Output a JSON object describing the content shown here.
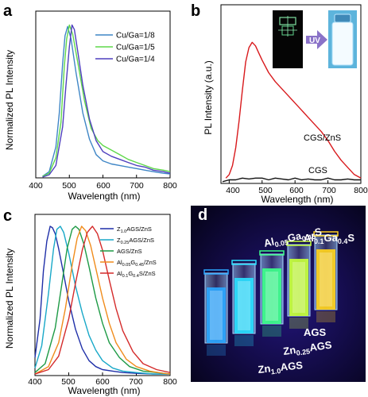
{
  "panels": {
    "a": {
      "letter": "a",
      "chart_data": {
        "type": "line",
        "xlabel": "Wavelength (nm)",
        "ylabel": "Normalized PL Intensity",
        "xlim": [
          400,
          800
        ],
        "ylim": [
          0,
          1.08
        ],
        "xticks": [
          "400",
          "500",
          "600",
          "700",
          "800"
        ],
        "legend": "top-right",
        "series": [
          {
            "name": "Cu/Ga=1/8",
            "color": "#3f86c6",
            "x": [
              420,
              440,
              460,
              470,
              480,
              487,
              495,
              505,
              520,
              540,
              560,
              580,
              600,
              625,
              650,
              675,
              700,
              725,
              750,
              780,
              800
            ],
            "y": [
              0.01,
              0.04,
              0.2,
              0.42,
              0.74,
              0.92,
              0.98,
              0.9,
              0.68,
              0.42,
              0.25,
              0.15,
              0.11,
              0.09,
              0.08,
              0.07,
              0.06,
              0.05,
              0.04,
              0.03,
              0.025
            ]
          },
          {
            "name": "Cu/Ga=1/5",
            "color": "#5fd84a",
            "x": [
              420,
              440,
              460,
              475,
              485,
              492,
              500,
              510,
              525,
              545,
              565,
              585,
              600,
              625,
              650,
              675,
              700,
              725,
              750,
              780,
              800
            ],
            "y": [
              0.01,
              0.03,
              0.13,
              0.36,
              0.72,
              0.9,
              0.99,
              0.93,
              0.75,
              0.5,
              0.32,
              0.24,
              0.21,
              0.18,
              0.15,
              0.12,
              0.1,
              0.08,
              0.06,
              0.05,
              0.04
            ]
          },
          {
            "name": "Cu/Ga=1/4",
            "color": "#4e3fbe",
            "x": [
              420,
              440,
              460,
              480,
              490,
              500,
              508,
              515,
              525,
              540,
              560,
              580,
              600,
              625,
              650,
              675,
              700,
              725,
              750,
              780,
              800
            ],
            "y": [
              0.005,
              0.02,
              0.08,
              0.33,
              0.6,
              0.85,
              0.99,
              0.96,
              0.82,
              0.6,
              0.38,
              0.24,
              0.17,
              0.14,
              0.12,
              0.1,
              0.08,
              0.07,
              0.05,
              0.04,
              0.03
            ]
          }
        ]
      }
    },
    "b": {
      "letter": "b",
      "uv_label": "UV",
      "chart_data": {
        "type": "line",
        "xlabel": "Wavelength (nm)",
        "ylabel": "PL Intensity (a.u.)",
        "xlim": [
          375,
          800
        ],
        "ylim": [
          0,
          1
        ],
        "xticks": [
          "400",
          "500",
          "600",
          "700",
          "800"
        ],
        "series": [
          {
            "name": "CGS/ZnS",
            "color": "#d8191c",
            "x": [
              390,
              400,
              410,
              420,
              430,
              440,
              450,
              460,
              470,
              480,
              490,
              500,
              520,
              540,
              560,
              580,
              600,
              620,
              640,
              660,
              680,
              700,
              720,
              740,
              760,
              780,
              800
            ],
            "y": [
              0.03,
              0.05,
              0.1,
              0.2,
              0.35,
              0.52,
              0.68,
              0.76,
              0.79,
              0.77,
              0.73,
              0.69,
              0.62,
              0.57,
              0.53,
              0.49,
              0.45,
              0.41,
              0.37,
              0.33,
              0.29,
              0.24,
              0.18,
              0.13,
              0.09,
              0.05,
              0.03
            ]
          },
          {
            "name": "CGS",
            "color": "#111111",
            "x": [
              380,
              400,
              420,
              440,
              460,
              480,
              500,
              520,
              540,
              560,
              580,
              600,
              620,
              640,
              660,
              680,
              700,
              720,
              740,
              760,
              780,
              800
            ],
            "y": [
              0.01,
              0.02,
              0.02,
              0.03,
              0.025,
              0.03,
              0.03,
              0.02,
              0.03,
              0.025,
              0.02,
              0.03,
              0.02,
              0.025,
              0.02,
              0.02,
              0.03,
              0.02,
              0.02,
              0.025,
              0.02,
              0.02
            ]
          }
        ]
      }
    },
    "c": {
      "letter": "c",
      "chart_data": {
        "type": "line",
        "xlabel": "Wavelength (nm)",
        "ylabel": "Normalized PL Intensity",
        "xlim": [
          400,
          800
        ],
        "ylim": [
          0,
          1.08
        ],
        "xticks": [
          "400",
          "500",
          "600",
          "700",
          "800"
        ],
        "legend": "top-right",
        "series": [
          {
            "name": "Z1.0AGS/ZnS",
            "color": "#1f2fa8",
            "sub": "1.0",
            "label_pre": "Z",
            "label_post": "AGS/ZnS",
            "x": [
              400,
              415,
              425,
              435,
              445,
              452,
              460,
              470,
              485,
              500,
              520,
              540,
              560,
              580,
              600,
              630,
              660,
              700,
              750,
              800
            ],
            "y": [
              0.12,
              0.38,
              0.7,
              0.9,
              1.0,
              0.99,
              0.95,
              0.85,
              0.68,
              0.5,
              0.31,
              0.18,
              0.1,
              0.06,
              0.04,
              0.03,
              0.02,
              0.015,
              0.01,
              0.01
            ]
          },
          {
            "name": "Z0.25AGS/ZnS",
            "color": "#18a8c8",
            "sub": "0.25",
            "label_pre": "Z",
            "label_post": "AGS/ZnS",
            "x": [
              400,
              420,
              440,
              455,
              465,
              475,
              485,
              500,
              520,
              540,
              560,
              580,
              600,
              630,
              660,
              700,
              750,
              800
            ],
            "y": [
              0.05,
              0.2,
              0.55,
              0.85,
              0.98,
              1.0,
              0.96,
              0.82,
              0.6,
              0.42,
              0.27,
              0.17,
              0.1,
              0.05,
              0.03,
              0.02,
              0.01,
              0.01
            ]
          },
          {
            "name": "AGS/ZnS",
            "color": "#1d9a45",
            "x": [
              400,
              430,
              460,
              480,
              495,
              510,
              520,
              530,
              545,
              560,
              580,
              600,
              620,
              650,
              680,
              720,
              760,
              800
            ],
            "y": [
              0.02,
              0.08,
              0.32,
              0.62,
              0.85,
              0.98,
              1.0,
              0.98,
              0.88,
              0.73,
              0.52,
              0.35,
              0.22,
              0.12,
              0.06,
              0.03,
              0.02,
              0.01
            ]
          },
          {
            "name": "Al0.05G0.45/ZnS",
            "color": "#f08c1c",
            "sub": "0.05",
            "mid": "G",
            "sub2": "0.45",
            "label_pre": "Al",
            "label_post": "/ZnS",
            "x": [
              400,
              440,
              470,
              490,
              510,
              525,
              538,
              550,
              565,
              580,
              600,
              620,
              640,
              670,
              700,
              740,
              780,
              800
            ],
            "y": [
              0.01,
              0.06,
              0.22,
              0.45,
              0.74,
              0.92,
              1.0,
              0.97,
              0.87,
              0.72,
              0.52,
              0.35,
              0.22,
              0.11,
              0.06,
              0.03,
              0.015,
              0.01
            ]
          },
          {
            "name": "Al0.1G0.4S/ZnS",
            "color": "#d42a2a",
            "sub": "0.1",
            "mid": "G",
            "sub2": "0.4",
            "label_pre": "Al",
            "label_post": "S/ZnS",
            "x": [
              400,
              440,
              470,
              500,
              520,
              540,
              555,
              570,
              585,
              600,
              620,
              640,
              660,
              690,
              720,
              760,
              800
            ],
            "y": [
              0.01,
              0.04,
              0.13,
              0.38,
              0.62,
              0.84,
              0.96,
              1.0,
              0.95,
              0.84,
              0.64,
              0.45,
              0.3,
              0.16,
              0.08,
              0.04,
              0.02
            ]
          }
        ]
      }
    },
    "d": {
      "letter": "d",
      "labels": {
        "zn10": {
          "pre": "Zn",
          "sub": "1.0",
          "post": "AGS"
        },
        "zn025": {
          "pre": "Zn",
          "sub": "0.25",
          "post": "AGS"
        },
        "ags": "AGS",
        "al005": {
          "a": "Al",
          "s1": "0.05",
          "b": "Ga",
          "s2": "0.45",
          "c": "S"
        },
        "al01": {
          "a": "Al",
          "s1": "0.1",
          "b": "Ga",
          "s2": "0.4",
          "c": "S"
        }
      },
      "cuvette_colors": [
        "#2aa6ff",
        "#29e0ff",
        "#3cff8a",
        "#c6ff38",
        "#ffd21c"
      ]
    }
  }
}
